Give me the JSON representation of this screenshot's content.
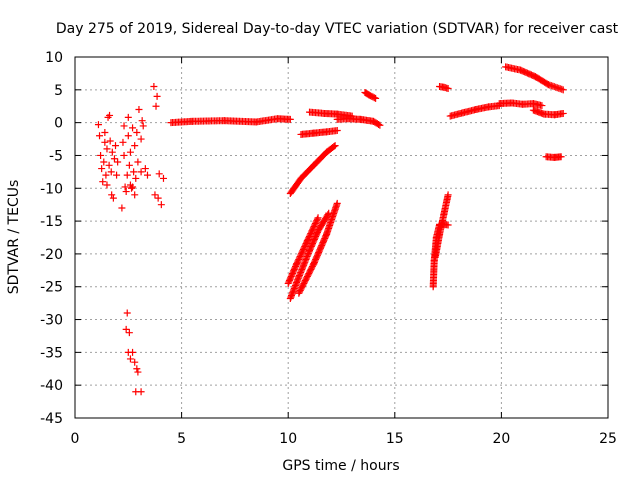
{
  "chart_data": {
    "type": "scatter",
    "title": "Day 275 of 2019, Sidereal Day-to-day VTEC variation (SDTVAR) for receiver cast",
    "xlabel": "GPS time / hours",
    "ylabel": "SDTVAR / TECUs",
    "xlim": [
      0,
      25
    ],
    "ylim": [
      -45,
      10
    ],
    "xticks": [
      0,
      5,
      10,
      15,
      20,
      25
    ],
    "yticks": [
      10,
      5,
      0,
      -5,
      -10,
      -15,
      -20,
      -25,
      -30,
      -35,
      -40,
      -45
    ],
    "grid": true,
    "marker": "+",
    "series": [
      {
        "name": "SDTVAR",
        "color": "#ff0000",
        "scatter_points": [
          [
            1.1,
            -0.3
          ],
          [
            1.15,
            -2
          ],
          [
            1.2,
            -5
          ],
          [
            1.25,
            -7
          ],
          [
            1.3,
            -9
          ],
          [
            1.35,
            -6
          ],
          [
            1.4,
            -3
          ],
          [
            1.45,
            -8
          ],
          [
            1.5,
            -4
          ],
          [
            1.55,
            0.8
          ],
          [
            1.6,
            -6.5
          ],
          [
            1.65,
            -2.8
          ],
          [
            1.7,
            -7.5
          ],
          [
            1.75,
            -4.5
          ],
          [
            1.8,
            -11.5
          ],
          [
            1.85,
            -5.5
          ],
          [
            1.9,
            -3.5
          ],
          [
            1.95,
            -8
          ],
          [
            2.0,
            -6
          ],
          [
            1.62,
            1.1
          ],
          [
            1.72,
            -11
          ],
          [
            1.5,
            -9.5
          ],
          [
            1.4,
            -1.5
          ],
          [
            2.2,
            -13
          ],
          [
            2.25,
            -3
          ],
          [
            2.3,
            -5
          ],
          [
            2.35,
            -9.8
          ],
          [
            2.4,
            -10.5
          ],
          [
            2.45,
            -8
          ],
          [
            2.5,
            -2
          ],
          [
            2.55,
            -6.5
          ],
          [
            2.6,
            -4.5
          ],
          [
            2.65,
            -10
          ],
          [
            2.7,
            -0.8
          ],
          [
            2.75,
            -7.5
          ],
          [
            2.8,
            -3.5
          ],
          [
            2.85,
            -8.5
          ],
          [
            2.9,
            -1.5
          ],
          [
            2.95,
            -6
          ],
          [
            3.0,
            2
          ],
          [
            2.3,
            -0.5
          ],
          [
            2.5,
            0.8
          ],
          [
            2.6,
            -9.5
          ],
          [
            2.7,
            -9.8
          ],
          [
            2.8,
            -11
          ],
          [
            3.1,
            -7.5
          ],
          [
            3.15,
            0.3
          ],
          [
            3.3,
            -7
          ],
          [
            3.4,
            -8
          ],
          [
            2.4,
            -31.5
          ],
          [
            2.45,
            -29
          ],
          [
            2.5,
            -35
          ],
          [
            2.55,
            -32
          ],
          [
            2.6,
            -36
          ],
          [
            2.7,
            -35
          ],
          [
            2.8,
            -36.5
          ],
          [
            2.9,
            -37.5
          ],
          [
            2.95,
            -38
          ],
          [
            2.85,
            -41
          ],
          [
            3.1,
            -41
          ],
          [
            3.7,
            5.5
          ],
          [
            3.8,
            2.5
          ],
          [
            3.85,
            4
          ],
          [
            3.75,
            -11
          ],
          [
            3.9,
            -11.5
          ],
          [
            3.95,
            -7.8
          ],
          [
            4.05,
            -12.5
          ],
          [
            4.15,
            -8.5
          ],
          [
            3.1,
            -2.5
          ],
          [
            3.2,
            -0.5
          ]
        ],
        "segments": [
          {
            "x": [
              4.5,
              5.5,
              7.0,
              8.5,
              9.5,
              10.1
            ],
            "y": [
              0.0,
              0.2,
              0.3,
              0.1,
              0.6,
              0.5
            ]
          },
          {
            "x": [
              10.1,
              10.6,
              11.2,
              11.8,
              12.2
            ],
            "y": [
              -10.8,
              -8.5,
              -6.5,
              -4.5,
              -3.5
            ]
          },
          {
            "x": [
              10.1,
              10.5,
              11.0,
              11.4,
              11.9
            ],
            "y": [
              -26.8,
              -23.5,
              -19.5,
              -16.5,
              -13.8
            ]
          },
          {
            "x": [
              10.0,
              10.4,
              10.9,
              11.4
            ],
            "y": [
              -24.5,
              -21.5,
              -18.0,
              -14.5
            ]
          },
          {
            "x": [
              10.5,
              11.2,
              11.8,
              12.3
            ],
            "y": [
              -26.0,
              -21.5,
              -17.0,
              -12.3
            ]
          },
          {
            "x": [
              10.6,
              11.2,
              11.8,
              12.3
            ],
            "y": [
              -1.8,
              -1.6,
              -1.4,
              -1.2
            ]
          },
          {
            "x": [
              11.0,
              11.7,
              12.3,
              13.0
            ],
            "y": [
              1.6,
              1.4,
              1.3,
              1.0
            ]
          },
          {
            "x": [
              12.3,
              12.8,
              13.4,
              14.0,
              14.3
            ],
            "y": [
              0.5,
              0.6,
              0.5,
              0.2,
              -0.4
            ]
          },
          {
            "x": [
              13.6,
              13.8,
              14.1
            ],
            "y": [
              4.6,
              4.2,
              3.7
            ]
          },
          {
            "x": [
              16.8,
              16.85,
              16.95,
              17.1
            ],
            "y": [
              -25.0,
              -21.0,
              -17.5,
              -15.5
            ]
          },
          {
            "x": [
              16.9,
              17.1,
              17.3,
              17.5
            ],
            "y": [
              -20.5,
              -17.0,
              -14.0,
              -11.0
            ]
          },
          {
            "x": [
              17.1,
              17.3,
              17.5
            ],
            "y": [
              -15.6,
              -15.5,
              -15.6
            ]
          },
          {
            "x": [
              17.1,
              17.3,
              17.5
            ],
            "y": [
              5.5,
              5.4,
              5.2
            ]
          },
          {
            "x": [
              17.6,
              18.2,
              18.8,
              19.4,
              19.9
            ],
            "y": [
              1.0,
              1.5,
              2.0,
              2.4,
              2.6
            ]
          },
          {
            "x": [
              19.9,
              20.5,
              21.0,
              21.5,
              21.9
            ],
            "y": [
              2.9,
              3.0,
              2.8,
              2.9,
              2.6
            ]
          },
          {
            "x": [
              21.5,
              22.0,
              22.5,
              22.9
            ],
            "y": [
              1.9,
              1.3,
              1.2,
              1.4
            ]
          },
          {
            "x": [
              20.2,
              20.9,
              21.6,
              22.2,
              22.9
            ],
            "y": [
              8.5,
              8.0,
              7.0,
              5.8,
              5.0
            ]
          },
          {
            "x": [
              22.1,
              22.5,
              22.8
            ],
            "y": [
              -5.2,
              -5.3,
              -5.2
            ]
          }
        ]
      }
    ]
  }
}
